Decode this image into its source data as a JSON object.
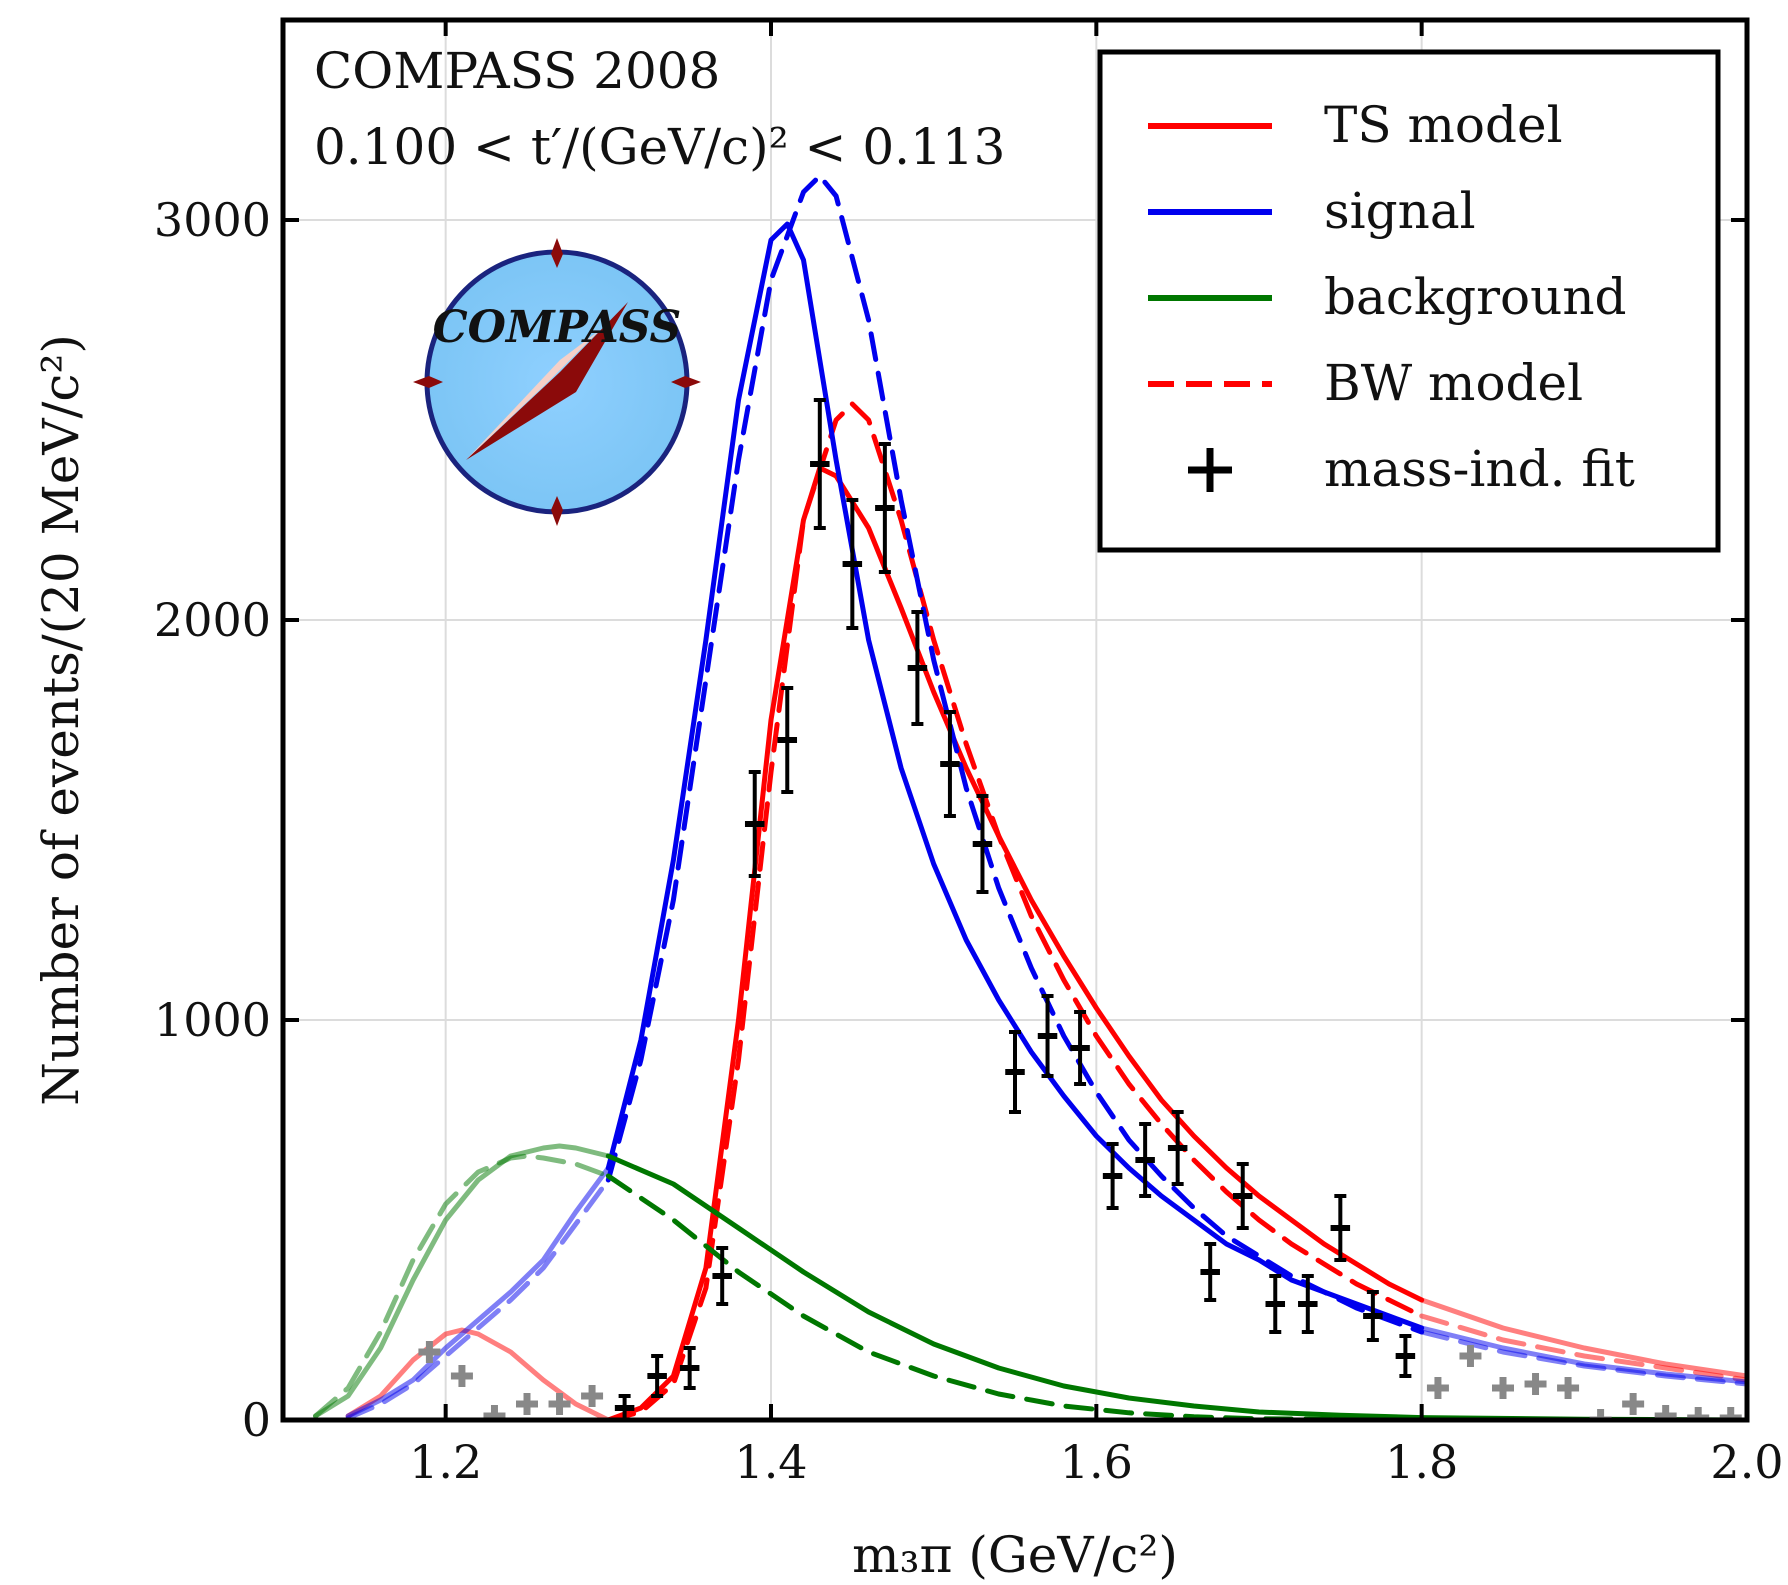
{
  "chart_data": {
    "type": "line",
    "annotation": {
      "line1": "COMPASS 2008",
      "line2": "0.100 < t′/(GeV/c)² < 0.113"
    },
    "logo_text": "COMPASS",
    "xlabel": "m₃π (GeV/c²)",
    "ylabel": "Number of events/(20 MeV/c²)",
    "xlim": [
      1.1,
      2.0
    ],
    "ylim": [
      0,
      3500
    ],
    "x_ticks": [
      1.2,
      1.4,
      1.6,
      1.8,
      2.0
    ],
    "x_tick_labels": [
      "1.2",
      "1.4",
      "1.6",
      "1.8",
      "2.0"
    ],
    "y_ticks": [
      0,
      1000,
      2000,
      3000
    ],
    "y_tick_labels": [
      "0",
      "1000",
      "2000",
      "3000"
    ],
    "grid": true,
    "legend_position": "top-right",
    "colors": {
      "ts_model": "#ff0000",
      "signal": "#0000ee",
      "background": "#007700",
      "bw_model": "#ff0000",
      "data": "#000000",
      "data_excluded": "#888888"
    },
    "legend": [
      {
        "label": "TS model",
        "series": "ts_model"
      },
      {
        "label": "signal",
        "series": "signal"
      },
      {
        "label": "background",
        "series": "background"
      },
      {
        "label": "BW model",
        "series": "bw_model"
      },
      {
        "label": "mass-ind. fit",
        "series": "data"
      }
    ],
    "series": [
      {
        "id": "ts_model",
        "style": "solid",
        "color": "#ff0000",
        "x": [
          1.3,
          1.32,
          1.34,
          1.36,
          1.38,
          1.4,
          1.42,
          1.43,
          1.44,
          1.46,
          1.48,
          1.5,
          1.52,
          1.54,
          1.56,
          1.58,
          1.6,
          1.62,
          1.64,
          1.66,
          1.68,
          1.7,
          1.72,
          1.74,
          1.76,
          1.78,
          1.8
        ],
        "y": [
          0,
          30,
          110,
          380,
          1000,
          1750,
          2250,
          2380,
          2360,
          2230,
          2030,
          1820,
          1630,
          1460,
          1300,
          1160,
          1030,
          910,
          800,
          710,
          630,
          560,
          500,
          440,
          390,
          340,
          300
        ],
        "extension_x": [
          1.8,
          1.85,
          1.9,
          1.95,
          2.0
        ],
        "extension_y": [
          300,
          230,
          180,
          140,
          110
        ]
      },
      {
        "id": "ts_model_low",
        "style": "solid",
        "color": "#ff0000",
        "faded": true,
        "x": [
          1.14,
          1.16,
          1.18,
          1.2,
          1.21,
          1.22,
          1.24,
          1.26,
          1.28,
          1.3
        ],
        "y": [
          10,
          60,
          150,
          215,
          225,
          215,
          170,
          100,
          40,
          0
        ]
      },
      {
        "id": "bw_model",
        "style": "dashed",
        "color": "#ff0000",
        "x": [
          1.3,
          1.32,
          1.34,
          1.36,
          1.38,
          1.4,
          1.42,
          1.44,
          1.45,
          1.46,
          1.48,
          1.5,
          1.52,
          1.54,
          1.56,
          1.58,
          1.6,
          1.62,
          1.64,
          1.66,
          1.68,
          1.7,
          1.72,
          1.74,
          1.76,
          1.78,
          1.8
        ],
        "y": [
          0,
          20,
          90,
          330,
          900,
          1620,
          2250,
          2500,
          2540,
          2500,
          2250,
          1950,
          1690,
          1460,
          1260,
          1100,
          960,
          840,
          740,
          650,
          570,
          500,
          440,
          390,
          340,
          300,
          260
        ],
        "extension_x": [
          1.8,
          1.85,
          1.9,
          1.95,
          2.0
        ],
        "extension_y": [
          260,
          200,
          160,
          130,
          100
        ]
      },
      {
        "id": "signal",
        "style": "solid",
        "color": "#0000ee",
        "x": [
          1.3,
          1.32,
          1.34,
          1.36,
          1.38,
          1.4,
          1.41,
          1.42,
          1.44,
          1.46,
          1.48,
          1.5,
          1.52,
          1.54,
          1.56,
          1.58,
          1.6,
          1.62,
          1.64,
          1.66,
          1.68,
          1.7,
          1.72,
          1.74,
          1.76,
          1.78,
          1.8
        ],
        "y": [
          630,
          950,
          1400,
          1950,
          2550,
          2950,
          2990,
          2900,
          2400,
          1950,
          1630,
          1390,
          1200,
          1050,
          920,
          810,
          710,
          630,
          560,
          500,
          440,
          400,
          350,
          320,
          290,
          260,
          230
        ],
        "faded_x": [
          1.14,
          1.16,
          1.18,
          1.2,
          1.22,
          1.24,
          1.26,
          1.28,
          1.3
        ],
        "faded_y": [
          10,
          50,
          100,
          180,
          250,
          320,
          400,
          520,
          630
        ],
        "extension_x": [
          1.8,
          1.85,
          1.9,
          1.95,
          2.0
        ],
        "extension_y": [
          230,
          180,
          140,
          115,
          95
        ]
      },
      {
        "id": "signal_bw",
        "style": "dashed",
        "color": "#0000ee",
        "x": [
          1.3,
          1.32,
          1.34,
          1.36,
          1.38,
          1.4,
          1.42,
          1.43,
          1.44,
          1.46,
          1.48,
          1.5,
          1.52,
          1.54,
          1.56,
          1.58,
          1.6,
          1.62,
          1.64,
          1.66,
          1.68,
          1.7,
          1.72,
          1.74,
          1.76,
          1.78,
          1.8
        ],
        "y": [
          600,
          900,
          1300,
          1850,
          2400,
          2850,
          3070,
          3110,
          3060,
          2750,
          2300,
          1900,
          1580,
          1330,
          1130,
          960,
          820,
          700,
          610,
          530,
          460,
          410,
          360,
          320,
          280,
          250,
          220
        ],
        "faded_x": [
          1.14,
          1.16,
          1.18,
          1.2,
          1.22,
          1.24,
          1.26,
          1.28,
          1.3
        ],
        "faded_y": [
          5,
          40,
          90,
          160,
          230,
          300,
          380,
          490,
          600
        ],
        "extension_x": [
          1.8,
          1.85,
          1.9,
          1.95,
          2.0
        ],
        "extension_y": [
          220,
          170,
          135,
          110,
          90
        ]
      },
      {
        "id": "background",
        "style": "solid",
        "color": "#007700",
        "faded_x": [
          1.12,
          1.14,
          1.16,
          1.18,
          1.2,
          1.22,
          1.24,
          1.26,
          1.27,
          1.28,
          1.3
        ],
        "faded_y": [
          10,
          60,
          180,
          350,
          500,
          600,
          660,
          680,
          685,
          680,
          660
        ],
        "x": [
          1.3,
          1.34,
          1.38,
          1.42,
          1.46,
          1.5,
          1.54,
          1.58,
          1.62,
          1.66,
          1.7,
          1.75,
          1.8,
          1.9,
          2.0
        ],
        "y": [
          660,
          590,
          480,
          370,
          270,
          190,
          130,
          85,
          55,
          35,
          20,
          12,
          6,
          2,
          0
        ]
      },
      {
        "id": "background_bw",
        "style": "dashed",
        "color": "#007700",
        "faded_x": [
          1.12,
          1.14,
          1.16,
          1.18,
          1.2,
          1.22,
          1.24,
          1.25,
          1.26,
          1.28,
          1.3
        ],
        "faded_y": [
          10,
          80,
          220,
          400,
          540,
          620,
          655,
          660,
          655,
          640,
          610
        ],
        "x": [
          1.3,
          1.34,
          1.38,
          1.42,
          1.46,
          1.5,
          1.54,
          1.58,
          1.62,
          1.66,
          1.7,
          1.8
        ],
        "y": [
          610,
          500,
          370,
          260,
          170,
          110,
          65,
          35,
          18,
          8,
          3,
          0
        ]
      }
    ],
    "points": [
      {
        "x": 1.31,
        "y": 30,
        "err": 30
      },
      {
        "x": 1.33,
        "y": 110,
        "err": 50
      },
      {
        "x": 1.35,
        "y": 130,
        "err": 50
      },
      {
        "x": 1.37,
        "y": 360,
        "err": 70
      },
      {
        "x": 1.39,
        "y": 1490,
        "err": 130
      },
      {
        "x": 1.41,
        "y": 1700,
        "err": 130
      },
      {
        "x": 1.43,
        "y": 2390,
        "err": 160
      },
      {
        "x": 1.45,
        "y": 2140,
        "err": 160
      },
      {
        "x": 1.47,
        "y": 2280,
        "err": 160
      },
      {
        "x": 1.49,
        "y": 1880,
        "err": 140
      },
      {
        "x": 1.51,
        "y": 1640,
        "err": 130
      },
      {
        "x": 1.53,
        "y": 1440,
        "err": 120
      },
      {
        "x": 1.55,
        "y": 870,
        "err": 100
      },
      {
        "x": 1.57,
        "y": 960,
        "err": 100
      },
      {
        "x": 1.59,
        "y": 930,
        "err": 90
      },
      {
        "x": 1.61,
        "y": 610,
        "err": 80
      },
      {
        "x": 1.63,
        "y": 650,
        "err": 90
      },
      {
        "x": 1.65,
        "y": 680,
        "err": 90
      },
      {
        "x": 1.67,
        "y": 370,
        "err": 70
      },
      {
        "x": 1.69,
        "y": 560,
        "err": 80
      },
      {
        "x": 1.71,
        "y": 290,
        "err": 70
      },
      {
        "x": 1.73,
        "y": 290,
        "err": 70
      },
      {
        "x": 1.75,
        "y": 480,
        "err": 80
      },
      {
        "x": 1.77,
        "y": 260,
        "err": 60
      },
      {
        "x": 1.79,
        "y": 160,
        "err": 50
      }
    ],
    "points_excluded": [
      {
        "x": 1.19,
        "y": 170
      },
      {
        "x": 1.21,
        "y": 110
      },
      {
        "x": 1.23,
        "y": 10
      },
      {
        "x": 1.25,
        "y": 40
      },
      {
        "x": 1.27,
        "y": 40
      },
      {
        "x": 1.29,
        "y": 60
      },
      {
        "x": 1.81,
        "y": 80
      },
      {
        "x": 1.83,
        "y": 160
      },
      {
        "x": 1.85,
        "y": 80
      },
      {
        "x": 1.87,
        "y": 90
      },
      {
        "x": 1.89,
        "y": 80
      },
      {
        "x": 1.91,
        "y": 0
      },
      {
        "x": 1.93,
        "y": 40
      },
      {
        "x": 1.95,
        "y": 10
      },
      {
        "x": 1.97,
        "y": 5
      },
      {
        "x": 1.99,
        "y": 5
      }
    ]
  }
}
